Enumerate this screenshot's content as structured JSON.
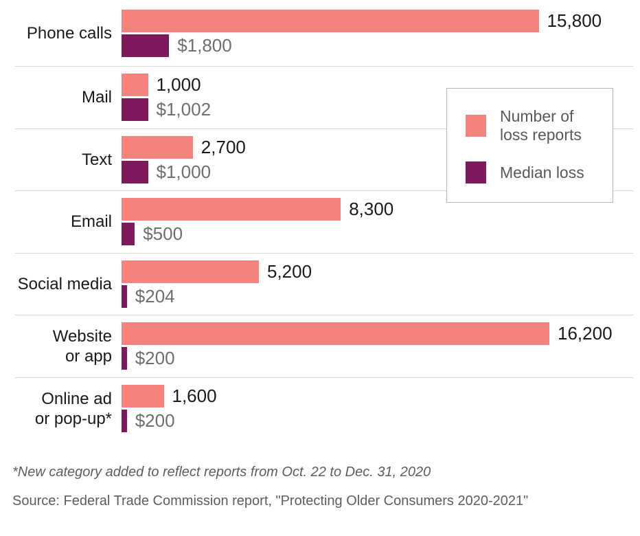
{
  "chart_data": {
    "type": "bar",
    "orientation": "horizontal",
    "categories": [
      "Phone calls",
      "Mail",
      "Text",
      "Email",
      "Social media",
      "Website or app",
      "Online ad or pop-up*"
    ],
    "category_display": [
      [
        "Phone calls"
      ],
      [
        "Mail"
      ],
      [
        "Text"
      ],
      [
        "Email"
      ],
      [
        "Social media"
      ],
      [
        "Website",
        "or app"
      ],
      [
        "Online ad",
        "or pop-up*"
      ]
    ],
    "series": [
      {
        "name": "Number of loss reports",
        "color": "#f6827e",
        "values": [
          15800,
          1000,
          2700,
          8300,
          5200,
          16200,
          1600
        ],
        "labels": [
          "15,800",
          "1,000",
          "2,700",
          "8,300",
          "5,200",
          "16,200",
          "1,600"
        ]
      },
      {
        "name": "Median loss",
        "color": "#7e1a5c",
        "values": [
          1800,
          1002,
          1000,
          500,
          204,
          200,
          200
        ],
        "labels": [
          "$1,800",
          "$1,002",
          "$1,000",
          "$500",
          "$204",
          "$200",
          "$200"
        ]
      }
    ],
    "axis_max": 16200,
    "grid": "horizontal-row-separators",
    "gridline_color": "#d9d9d9",
    "legend_position": "top-right",
    "value_label_color_reports": "#1a1a1a",
    "value_label_color_median": "#6e6e6e"
  },
  "legend": {
    "items": [
      {
        "label": "Number of loss reports",
        "color": "#f6827e"
      },
      {
        "label": "Median loss",
        "color": "#7e1a5c"
      }
    ]
  },
  "footnotes": {
    "note": "*New category added to reflect reports from Oct. 22 to Dec. 31, 2020",
    "source": "Source: Federal Trade Commission report, \"Protecting Older Consumers 2020-2021\""
  }
}
